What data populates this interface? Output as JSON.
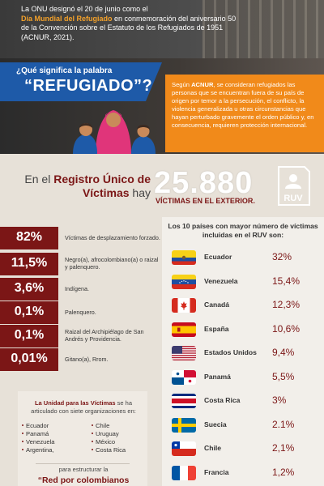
{
  "intro": {
    "line1": "La ONU designó el 20 de junio como el",
    "highlight": "Día Mundial del Refugiado",
    "line2": " en conmemoración del aniversario 50 de la Convención sobre el Estatuto de los Refugiados de 1951 (ACNUR, 2021)."
  },
  "question": {
    "line1": "¿Qué significa la palabra",
    "line2": "“REFUGIADO”?"
  },
  "definition": {
    "lead": "Según ",
    "org": "ACNUR",
    "body": ", se consideran refugiados las personas que se encuentran fuera de su país de origen por temor a la persecución, el conflicto, la violencia generalizada u otras circunstancias que hayan perturbado gravemente el orden público y, en consecuencia, requieren protección internacional."
  },
  "registry": {
    "pre": "En el ",
    "bold": "Registro Único de Víctimas",
    "post": " hay",
    "number": "25.880",
    "sub": "VÍCTIMAS EN EL EXTERIOR.",
    "icon_label": "RUV",
    "icon": "id-card-person-icon"
  },
  "stats": [
    {
      "pct": "82%",
      "desc": "Víctimas de desplazamiento forzado."
    },
    {
      "pct": "11,5%",
      "desc": "Negro(a), afrocolombiano(a) o raizal y palenquero."
    },
    {
      "pct": "3,6%",
      "desc": "Indígena."
    },
    {
      "pct": "0,1%",
      "desc": "Palenquero."
    },
    {
      "pct": "0,1%",
      "desc": "Raizal del Archipiélago de San Andrés y Providencia."
    },
    {
      "pct": "0,01%",
      "desc": "Gitano(a), Rrom."
    }
  ],
  "countries": {
    "title": "Los 10 países con mayor número de víctimas incluidas en el RUV son:",
    "items": [
      {
        "name": "Ecuador",
        "pct": "32%",
        "flag": "ecuador"
      },
      {
        "name": "Venezuela",
        "pct": "15,4%",
        "flag": "venezuela"
      },
      {
        "name": "Canadá",
        "pct": "12,3%",
        "flag": "canada"
      },
      {
        "name": "España",
        "pct": "10,6%",
        "flag": "spain"
      },
      {
        "name": "Estados Unidos",
        "pct": "9,4%",
        "flag": "usa"
      },
      {
        "name": "Panamá",
        "pct": "5,5%",
        "flag": "panama"
      },
      {
        "name": "Costa Rica",
        "pct": "3%",
        "flag": "costa-rica"
      },
      {
        "name": "Suecia",
        "pct": "2.1%",
        "flag": "sweden"
      },
      {
        "name": "Chile",
        "pct": "2,1%",
        "flag": "chile"
      },
      {
        "name": "Francia",
        "pct": "1,2%",
        "flag": "france"
      }
    ]
  },
  "unit": {
    "bold": "La Unidad para las Víctimas",
    "rest": " se ha articulado con siete organizaciones en:",
    "col1": [
      "Ecuador",
      "Panamá",
      "Venezuela",
      "Argentina,"
    ],
    "col2": [
      "Chile",
      "Uruguay",
      "México",
      "Costa Rica"
    ],
    "para": "para estructurar la",
    "red": "“Red por colombianos"
  },
  "colors": {
    "accent_red": "#7b1616",
    "accent_blue": "#1e5aa8",
    "accent_orange": "#f18a1a",
    "highlight_yellow": "#f3a12a"
  }
}
